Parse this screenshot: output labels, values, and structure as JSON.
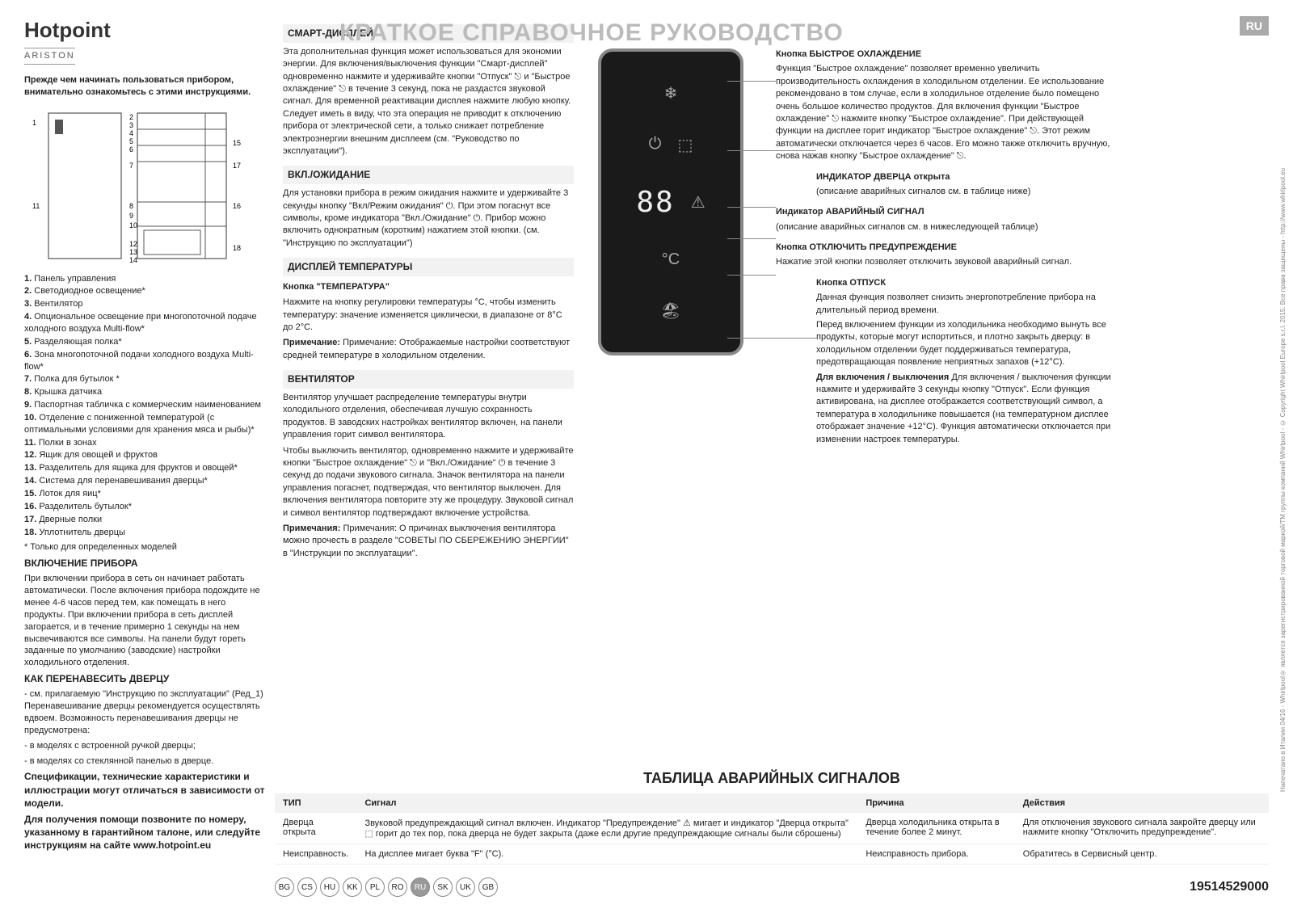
{
  "brand": "Hotpoint",
  "subbrand": "ARISTON",
  "title": "КРАТКОЕ СПРАВОЧНОЕ РУКОВОДСТВО",
  "lang_badge": "RU",
  "intro": "Прежде чем начинать пользоваться прибором, внимательно ознакомьтесь с этими инструкциями.",
  "parts": [
    "Панель управления",
    "Светодиодное освещение*",
    "Вентилятор",
    "Опциональное освещение при многопоточной подаче холодного воздуха Multi-flow*",
    "Разделяющая полка*",
    "Зона многопоточной подачи холодного воздуха Multi-flow*",
    "Полка для бутылок *",
    "Крышка датчика",
    "Паспортная табличка с коммерческим наименованием",
    "Отделение с пониженной температурой (с оптимальными условиями для хранения мяса и рыбы)*",
    "Полки в зонах",
    "Ящик для овощей и фруктов",
    "Разделитель для ящика для фруктов и овощей*",
    "Система для перенавешивания дверцы*",
    "Лоток для яиц*",
    "Разделитель бутылок*",
    "Дверные полки",
    "Уплотнитель дверцы"
  ],
  "parts_note": "* Только для определенных моделей",
  "s1_h": "ВКЛЮЧЕНИЕ ПРИБОРА",
  "s1_p": "При включении прибора в сеть он начинает работать автоматически. После включения прибора подождите не менее 4-6 часов перед тем, как помещать в него продукты. При включении прибора в сеть дисплей загорается, и в течение примерно 1 секунды на нем высвечиваются все символы. На панели будут гореть заданные по умолчанию (заводские) настройки холодильного отделения.",
  "s2_h": "КАК ПЕРЕНАВЕСИТЬ ДВЕРЦУ",
  "s2_p1": "- см. прилагаемую \"Инструкцию по эксплуатации\" (Ред_1) Перенавешивание дверцы рекомендуется осуществлять вдвоем. Возможность перенавешивания дверцы не предусмотрена:",
  "s2_p2": "- в моделях с встроенной ручкой дверцы;",
  "s2_p3": "- в моделях со стеклянной панелью в дверце.",
  "s3": "Спецификации, технические характеристики и иллюстрации могут отличаться в зависимости от модели.",
  "s4": "Для получения помощи позвоните по номеру, указанному в гарантийном талоне, или следуйте инструкциям на сайте www.hotpoint.eu",
  "c2_1_h": "СМАРТ-ДИСПЛЕЙ",
  "c2_1_p": "Эта дополнительная функция может использоваться для экономии энергии. Для включения/выключения функции \"Смарт-дисплей\" одновременно нажмите и удерживайте кнопки \"Отпуск\" ⎋ и \"Быстрое охлаждение\" ⎋ в течение 3 секунд, пока не раздастся звуковой сигнал. Для временной реактивации дисплея нажмите любую кнопку. Следует иметь в виду, что эта операция не приводит к отключению прибора от электрической сети, а только снижает потребление электроэнергии внешним дисплеем (см. \"Руководство по эксплуатации\").",
  "c2_2_h": "ВКЛ./ОЖИДАНИЕ",
  "c2_2_p": "Для установки прибора в режим ожидания нажмите и удерживайте 3 секунды кнопку \"Вкл/Режим ожидания\" ⏻. При этом погаснут все символы, кроме индикатора \"Вкл./Ожидание\" ⏻. Прибор можно включить однократным (коротким) нажатием этой кнопки. (см. \"Инструкцию по эксплуатации\")",
  "c2_3_h": "ДИСПЛЕЙ ТЕМПЕРАТУРЫ",
  "c2_3a_h": "Кнопка \"ТЕМПЕРАТУРА\"",
  "c2_3a_p": "Нажмите на кнопку регулировки температуры °C, чтобы изменить температуру: значение изменяется циклически, в диапазоне от 8°C до 2°C.",
  "c2_3b": "Примечание: Отображаемые настройки соответствуют средней температуре в холодильном отделении.",
  "c2_4_h": "ВЕНТИЛЯТОР",
  "c2_4_p1": "Вентилятор улучшает распределение температуры внутри холодильного отделения, обеспечивая лучшую сохранность продуктов. В заводских настройках вентилятор включен, на панели управления горит символ вентилятора.",
  "c2_4_p2": "Чтобы выключить вентилятор, одновременно нажмите и удерживайте кнопки \"Быстрое охлаждение\" ⎋ и \"Вкл./Ожидание\" ⏻ в течение 3 секунд до подачи звукового сигнала. Значок вентилятора на панели управления погаснет, подтверждая, что вентилятор выключен. Для включения вентилятора повторите эту же процедуру. Звуковой сигнал и символ вентилятор подтверждают включение устройства.",
  "c2_4_p3": "Примечания: О причинах выключения вентилятора можно прочесть в разделе \"СОВЕТЫ ПО СБЕРЕЖЕНИЮ ЭНЕРГИИ\" в \"Инструкции по эксплуатации\".",
  "r1_h": "Кнопка БЫСТРОЕ ОХЛАЖДЕНИЕ",
  "r1_p": "Функция \"Быстрое охлаждение\" позволяет временно увеличить производительность охлаждения в холодильном отделении. Ее использование рекомендовано в том случае, если в холодильное отделение было помещено очень большое количество продуктов. Для включения функции \"Быстрое охлаждение\" ⎋ нажмите кнопку \"Быстрое охлаждение\". При действующей функции на дисплее горит индикатор \"Быстрое охлаждение\" ⎋. Этот режим автоматически отключается через 6 часов. Его можно также отключить вручную, снова нажав кнопку \"Быстрое охлаждение\" ⎋.",
  "r2_h": "ИНДИКАТОР ДВЕРЦА открыта",
  "r2_p": "(описание аварийных сигналов см. в таблице ниже)",
  "r3_h": "Индикатор АВАРИЙНЫЙ СИГНАЛ",
  "r3_p": "(описание аварийных сигналов см. в нижеследующей таблице)",
  "r4_h": "Кнопка ОТКЛЮЧИТЬ ПРЕДУПРЕЖДЕНИЕ",
  "r4_p": "Нажатие этой кнопки позволяет отключить звуковой аварийный сигнал.",
  "r5_h": "Кнопка ОТПУСК",
  "r5_p1": "Данная функция позволяет снизить энергопотребление прибора на длительный период времени.",
  "r5_p2": "Перед включением функции из холодильника необходимо вынуть все продукты, которые могут испортиться, и плотно закрыть дверцу: в холодильном отделении будет поддерживаться температура, предотвращающая появление неприятных запахов (+12°C).",
  "r5_p3": "Для включения / выключения функции нажмите и удерживайте 3 секунды кнопку \"Отпуск\". Если функция активирована, на дисплее отображается соответствующий символ, а температура в холодильнике повышается (на температурном дисплее отображает значение +12°C). Функция автоматически отключается при изменении настроек температуры.",
  "alarm_title": "ТАБЛИЦА АВАРИЙНЫХ СИГНАЛОВ",
  "alarm_cols": [
    "ТИП",
    "Сигнал",
    "Причина",
    "Действия"
  ],
  "alarm_rows": [
    [
      "Дверца открыта",
      "Звуковой предупреждающий сигнал включен. Индикатор \"Предупреждение\" ⚠ мигает и индикатор \"Дверца открыта\" ⬚ горит до тех пор, пока дверца не будет закрыта (даже если другие предупреждающие сигналы были сброшены)",
      "Дверца холодильника открыта в течение более 2 минут.",
      "Для отключения звукового сигнала закройте дверцу или нажмите кнопку \"Отключить предупреждение\"."
    ],
    [
      "Неисправность.",
      "На дисплее мигает буква \"F\" (°C).",
      "Неисправность прибора.",
      "Обратитесь в Сервисный центр."
    ]
  ],
  "langs": [
    "BG",
    "CS",
    "HU",
    "KK",
    "PL",
    "RO",
    "RU",
    "SK",
    "UK",
    "GB"
  ],
  "lang_active": "RU",
  "partnum": "19514529000",
  "copyright": "Напечатано в Италии   04/16 - Whirlpool® является зарегистрированной торговой маркой/TM группы компаний Whirlpool - © Copyright Whirlpool Europe s.r.l. 2015. Все права защищены - http://www.whirlpool.eu",
  "digits": "88",
  "colors": {
    "title": "#bbbbbb",
    "badge": "#aaaaaa",
    "panel": "#1a1a1a",
    "grey_bg": "#f2f2f2"
  }
}
